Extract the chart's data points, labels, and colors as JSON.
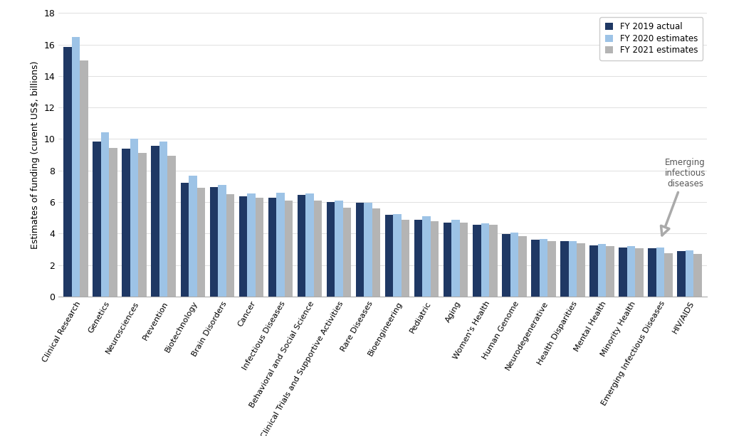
{
  "categories": [
    "Clinical Research",
    "Genetics",
    "Neurosciences",
    "Prevention",
    "Biotechnology",
    "Brain Disorders",
    "Cancer",
    "Infectious Diseases",
    "Behavioral and Social Science",
    "Clinical Trials and Supportive Activities",
    "Rare Diseases",
    "Bioengineering",
    "Pediatric",
    "Aging",
    "Women's Health",
    "Human Genome",
    "Neurodegenerative",
    "Health Disparities",
    "Mental Health",
    "Minority Health",
    "Emerging Infectious Diseases",
    "HIV/AIDS"
  ],
  "fy2019": [
    15.85,
    9.85,
    9.4,
    9.55,
    7.2,
    6.95,
    6.35,
    6.25,
    6.45,
    6.0,
    5.95,
    5.2,
    4.85,
    4.7,
    4.55,
    3.95,
    3.6,
    3.5,
    3.25,
    3.1,
    3.05,
    2.9
  ],
  "fy2020": [
    16.5,
    10.45,
    10.0,
    9.85,
    7.65,
    7.1,
    6.55,
    6.6,
    6.55,
    6.1,
    5.95,
    5.25,
    5.1,
    4.85,
    4.65,
    4.05,
    3.65,
    3.5,
    3.35,
    3.2,
    3.1,
    2.95
  ],
  "fy2021": [
    15.0,
    9.45,
    9.1,
    8.95,
    6.9,
    6.5,
    6.25,
    6.1,
    6.1,
    5.65,
    5.6,
    4.85,
    4.8,
    4.7,
    4.55,
    3.85,
    3.5,
    3.4,
    3.2,
    3.05,
    2.75,
    2.7
  ],
  "color_2019": "#1f3864",
  "color_2020": "#9dc3e6",
  "color_2021": "#b4b4b4",
  "ylabel": "Estimates of funding (curent US$, billions)",
  "ylim": [
    0,
    18
  ],
  "yticks": [
    0,
    2,
    4,
    6,
    8,
    10,
    12,
    14,
    16,
    18
  ],
  "legend_labels": [
    "FY 2019 actual",
    "FY 2020 estimates",
    "FY 2021 estimates"
  ],
  "annotation_text": "Emerging\ninfectious\ndiseases",
  "background_color": "#ffffff"
}
